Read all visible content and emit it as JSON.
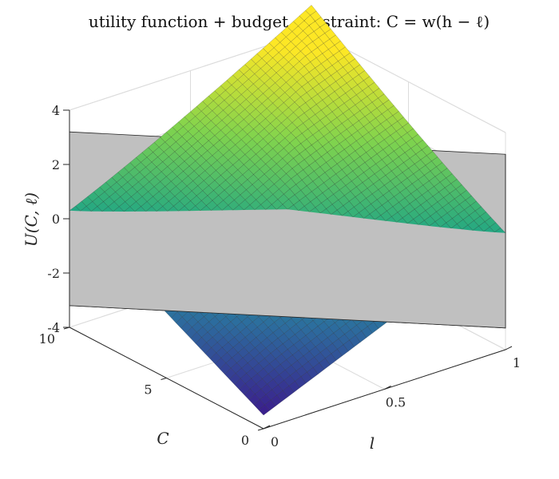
{
  "chart_data": {
    "type": "surface",
    "title": "utility function + budget constraint: C = w(h − ℓ)",
    "xlabel": "l",
    "ylabel": "C",
    "zlabel": "U(C, ℓ)",
    "xlim": [
      0,
      1
    ],
    "ylim": [
      0,
      10
    ],
    "zlim": [
      -4,
      4
    ],
    "x_ticks": [
      "0",
      "0.5",
      "1"
    ],
    "y_ticks": [
      "0",
      "5",
      "10"
    ],
    "z_ticks": [
      "-4",
      "-2",
      "0",
      "2",
      "4"
    ],
    "surface_corners": [
      {
        "l": 0,
        "C": 0,
        "U": -3.5
      },
      {
        "l": 1,
        "C": 0,
        "U": 0.3
      },
      {
        "l": 0,
        "C": 10,
        "U": 0.3
      },
      {
        "l": 1,
        "C": 10,
        "U": 4.0
      }
    ],
    "budget_plane": {
      "line_endpoints": [
        {
          "l": 0,
          "C": 10
        },
        {
          "l": 1,
          "C": 0
        }
      ],
      "z_range": [
        -3.2,
        3.2
      ],
      "color": "#c0c0c0"
    },
    "colormap": [
      "#3b1c8c",
      "#2c6e9e",
      "#21a684",
      "#7fd34e",
      "#fde725"
    ],
    "grid": true
  }
}
